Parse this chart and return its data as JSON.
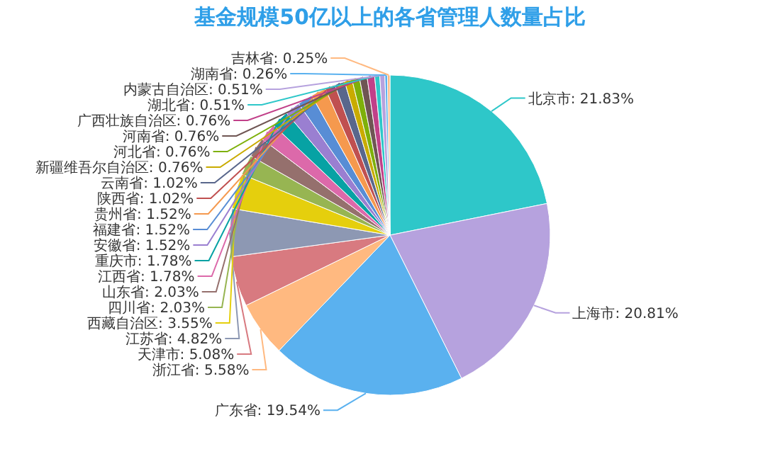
{
  "chart_data": {
    "type": "pie",
    "title": "基金规模50亿以上的各省管理人数量占比",
    "categories": [
      "北京市",
      "上海市",
      "广东省",
      "浙江省",
      "天津市",
      "江苏省",
      "西藏自治区",
      "四川省",
      "山东省",
      "江西省",
      "重庆市",
      "安徽省",
      "福建省",
      "贵州省",
      "陕西省",
      "云南省",
      "新疆维吾尔自治区",
      "河北省",
      "河南省",
      "广西壮族自治区",
      "湖北省",
      "内蒙古自治区",
      "湖南省",
      "吉林省"
    ],
    "values": [
      21.83,
      20.81,
      19.54,
      5.58,
      5.08,
      4.82,
      3.55,
      2.03,
      2.03,
      1.78,
      1.78,
      1.52,
      1.52,
      1.52,
      1.02,
      1.02,
      0.76,
      0.76,
      0.76,
      0.76,
      0.51,
      0.51,
      0.26,
      0.25
    ],
    "colors": [
      "#2ec7c9",
      "#b6a2de",
      "#5ab1ef",
      "#ffb980",
      "#d87a80",
      "#8d98b3",
      "#e5cf0d",
      "#97b552",
      "#95706d",
      "#dc69aa",
      "#07a2a4",
      "#9a7fd1",
      "#588dd5",
      "#f5994e",
      "#c05050",
      "#59678c",
      "#c9ab00",
      "#7eb00a",
      "#6f5553",
      "#c14089",
      "#2ec7c9",
      "#b6a2de",
      "#5ab1ef",
      "#ffb980"
    ],
    "value_labels": [
      ": 21.83%",
      ": 20.81%",
      ": 19.54%",
      ": 5.58%",
      ": 5.08%",
      ": 4.82%",
      ": 3.55%",
      ": 2.03%",
      ": 2.03%",
      ": 1.78%",
      ": 1.78%",
      ": 1.52%",
      ": 1.52%",
      ": 1.52%",
      ": 1.02%",
      ": 1.02%",
      ": 0.76%",
      ": 0.76%",
      ": 0.76%",
      ": 0.76%",
      ": 0.51%",
      ": 0.51%",
      ": 0.26%",
      ": 0.25%"
    ]
  }
}
